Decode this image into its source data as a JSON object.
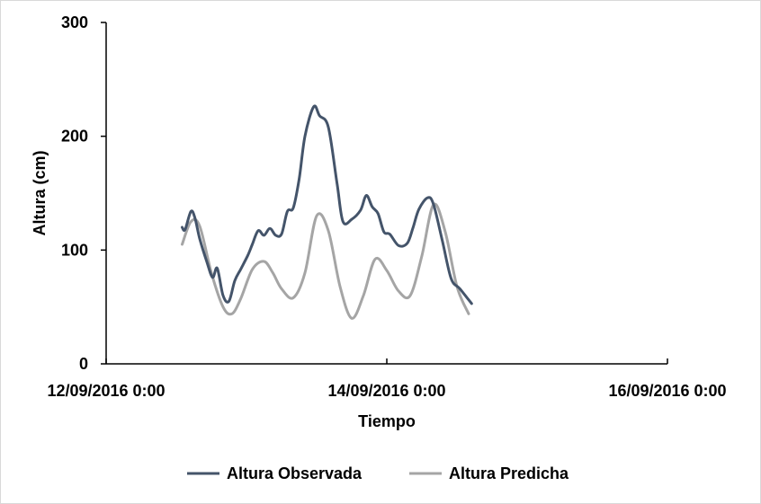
{
  "chart_data": {
    "type": "line",
    "xlabel": "Tiempo",
    "ylabel": "Altura (cm)",
    "title": "",
    "xticks": [
      "12/09/2016 0:00",
      "14/09/2016 0:00",
      "16/09/2016 0:00"
    ],
    "xlim": [
      0,
      96
    ],
    "yticks": [
      "0",
      "100",
      "200",
      "300"
    ],
    "ylim": [
      0,
      300
    ],
    "grid": false,
    "legend_position": "bottom",
    "series": [
      {
        "name": "Altura Observada",
        "color": "#44546a",
        "x": [
          13.0,
          13.5,
          14.5,
          15.2,
          16.0,
          17.2,
          18.2,
          19.0,
          20.0,
          21.0,
          22.0,
          23.0,
          24.2,
          25.0,
          26.0,
          27.0,
          28.0,
          29.0,
          30.0,
          31.0,
          32.0,
          33.0,
          34.0,
          35.5,
          36.5,
          38.0,
          39.5,
          40.5,
          42.0,
          43.5,
          44.5,
          45.5,
          46.5,
          47.5,
          48.5,
          50.0,
          51.5,
          52.5,
          53.5,
          55.0,
          56.0,
          57.5,
          59.0,
          60.5,
          62.5,
          64.0,
          65.5,
          67.0,
          68.0,
          69.5,
          70.5,
          71.5,
          72.5,
          73.5,
          74.5,
          75.5,
          76.5,
          77.5,
          78.5
        ],
        "y": [
          120,
          118,
          134,
          128,
          110,
          90,
          76,
          84,
          60,
          55,
          73,
          83,
          95,
          105,
          117,
          113,
          119,
          113,
          114,
          134,
          137,
          162,
          200,
          226,
          218,
          208,
          158,
          125,
          127,
          135,
          148,
          138,
          132,
          116,
          114,
          104,
          106,
          120,
          136,
          146,
          140,
          108,
          75,
          66,
          53,
          null,
          null,
          null,
          null,
          null,
          null,
          null,
          null,
          null,
          null,
          null,
          null,
          null,
          null
        ]
      },
      {
        "name": "Altura Predicha",
        "color": "#a5a5a5",
        "x": [
          13.0,
          14.5,
          16.0,
          18.0,
          20.0,
          21.5,
          23.0,
          25.0,
          27.0,
          28.5,
          30.0,
          32.0,
          34.0,
          36.0,
          38.0,
          40.0,
          42.0,
          44.0,
          46.0,
          48.0,
          50.0,
          52.0,
          54.0,
          56.0,
          58.0,
          60.0,
          62.0
        ],
        "y": [
          105,
          125,
          121,
          80,
          50,
          44,
          57,
          83,
          90,
          80,
          66,
          58,
          80,
          130,
          117,
          68,
          40,
          60,
          92,
          82,
          64,
          60,
          95,
          140,
          116,
          68,
          44
        ]
      }
    ]
  }
}
